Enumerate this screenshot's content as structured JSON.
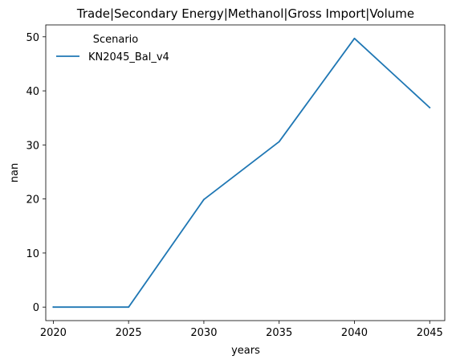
{
  "chart_data": {
    "type": "line",
    "title": "Trade|Secondary Energy|Methanol|Gross Import|Volume",
    "xlabel": "years",
    "ylabel": "nan",
    "x": [
      2020,
      2025,
      2030,
      2035,
      2040,
      2045
    ],
    "x_ticks": [
      "2020",
      "2025",
      "2030",
      "2035",
      "2040",
      "2045"
    ],
    "y_ticks": [
      "0",
      "10",
      "20",
      "30",
      "40",
      "50"
    ],
    "xlim": [
      2019.5,
      2046.0
    ],
    "ylim": [
      -2.5,
      52.2
    ],
    "grid": false,
    "legend": {
      "title": "Scenario",
      "placement": "top-left"
    },
    "series": [
      {
        "name": "KN2045_Bal_v4",
        "color": "#1f77b4",
        "values": [
          0.0,
          0.0,
          19.9,
          30.6,
          49.7,
          36.9
        ]
      }
    ]
  }
}
